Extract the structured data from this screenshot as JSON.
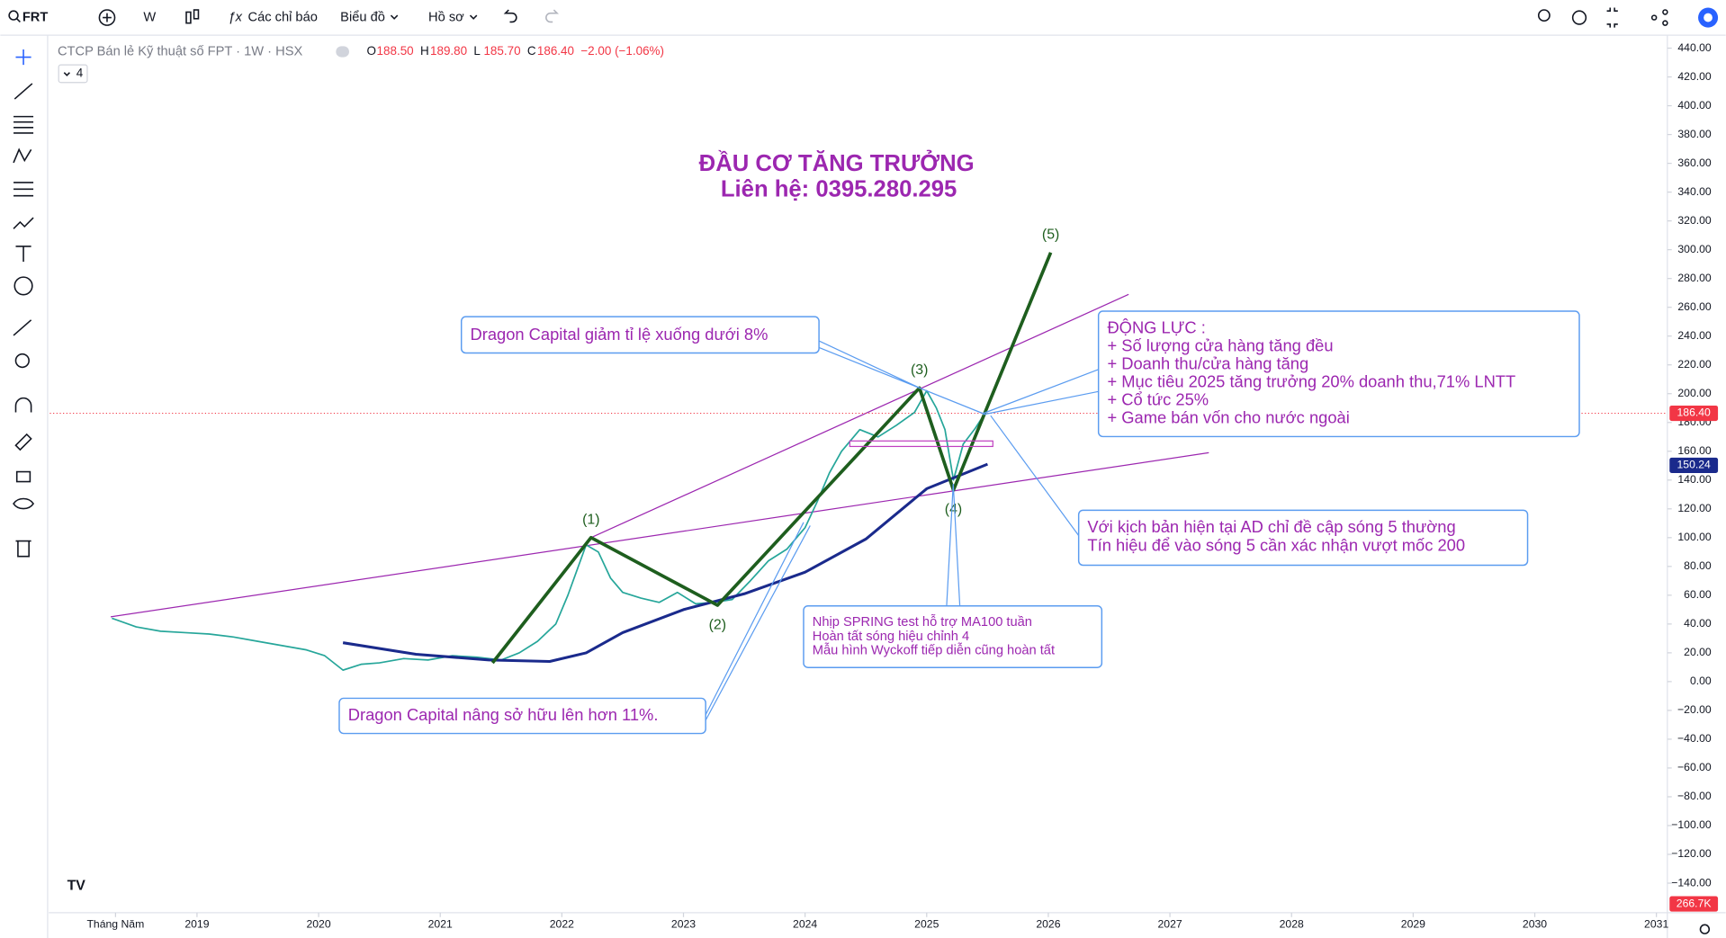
{
  "toolbar": {
    "symbol": "FRT",
    "interval": "W",
    "indicators": "Các chỉ báo",
    "chart_type": "Biểu đồ",
    "profile": "Hồ sơ"
  },
  "legend": {
    "name": "CTCP Bán lẻ Kỹ thuật số FPT · 1W · HSX",
    "ohlc": [
      {
        "label": "O",
        "value": "188.50"
      },
      {
        "label": "H",
        "value": "189.80"
      },
      {
        "label": "L",
        "value": "185.70"
      },
      {
        "label": "C",
        "value": "186.40"
      }
    ],
    "change": "−2.00 (−1.06%)",
    "collapsed_count": "4"
  },
  "headline": {
    "title": "ĐẦU CƠ TĂNG TRƯỞNG",
    "contact": "Liên hệ: 0395.280.295"
  },
  "chart": {
    "type": "line",
    "xlim": [
      2017.79,
      2031.09
    ],
    "ylim": [
      -159,
      449
    ],
    "xticks": [
      {
        "value": 2018.33,
        "label": "Tháng Năm"
      },
      2019,
      2020,
      2021,
      2022,
      2023,
      2024,
      2025,
      2026,
      2027,
      2028,
      2029,
      2030,
      2031
    ],
    "yticks": [
      {
        "value": 440,
        "label": "440.00"
      },
      {
        "value": 420,
        "label": "420.00"
      },
      {
        "value": 400,
        "label": "400.00"
      },
      {
        "value": 380,
        "label": "380.00"
      },
      {
        "value": 360,
        "label": "360.00"
      },
      {
        "value": 340,
        "label": "340.00"
      },
      {
        "value": 320,
        "label": "320.00"
      },
      {
        "value": 300,
        "label": "300.00"
      },
      {
        "value": 280,
        "label": "280.00"
      },
      {
        "value": 260,
        "label": "260.00"
      },
      {
        "value": 240,
        "label": "240.00"
      },
      {
        "value": 220,
        "label": "220.00"
      },
      {
        "value": 200,
        "label": "200.00"
      },
      {
        "value": 180,
        "label": "180.00"
      },
      {
        "value": 160,
        "label": "160.00"
      },
      {
        "value": 140,
        "label": "140.00"
      },
      {
        "value": 120,
        "label": "120.00"
      },
      {
        "value": 100,
        "label": "100.00"
      },
      {
        "value": 80,
        "label": "80.00"
      },
      {
        "value": 60,
        "label": "60.00"
      },
      {
        "value": 40,
        "label": "40.00"
      },
      {
        "value": 20,
        "label": "20.00"
      },
      {
        "value": 0,
        "label": "0.00"
      },
      {
        "value": -20,
        "label": "−20.00"
      },
      {
        "value": -40,
        "label": "−40.00"
      },
      {
        "value": -60,
        "label": "−60.00"
      },
      {
        "value": -80,
        "label": "−80.00"
      },
      {
        "value": -100,
        "label": "−100.00"
      },
      {
        "value": -120,
        "label": "−120.00"
      },
      {
        "value": -140,
        "label": "−140.00"
      }
    ],
    "price": {
      "color": "#26a69a",
      "x": [
        2018.3,
        2018.5,
        2018.7,
        2018.9,
        2019.1,
        2019.3,
        2019.5,
        2019.7,
        2019.9,
        2020.05,
        2020.2,
        2020.35,
        2020.5,
        2020.7,
        2020.9,
        2021.1,
        2021.3,
        2021.5,
        2021.65,
        2021.8,
        2021.95,
        2022.05,
        2022.2,
        2022.3,
        2022.4,
        2022.5,
        2022.65,
        2022.8,
        2022.95,
        2023.1,
        2023.25,
        2023.4,
        2023.55,
        2023.7,
        2023.85,
        2024.0,
        2024.1,
        2024.2,
        2024.3,
        2024.45,
        2024.6,
        2024.75,
        2024.9,
        2025.0,
        2025.08,
        2025.15,
        2025.22,
        2025.3,
        2025.4,
        2025.48
      ],
      "values": [
        44,
        38,
        35,
        34,
        33,
        31,
        28,
        25,
        22,
        18,
        8,
        12,
        13,
        16,
        15,
        18,
        17,
        15,
        20,
        28,
        40,
        60,
        95,
        90,
        72,
        62,
        58,
        55,
        62,
        54,
        55,
        57,
        70,
        84,
        92,
        107,
        125,
        145,
        160,
        175,
        170,
        178,
        187,
        202,
        190,
        175,
        140,
        165,
        176,
        186.4
      ]
    },
    "ma100": {
      "color": "#1a2a8c",
      "x": [
        2020.2,
        2020.8,
        2021.4,
        2021.9,
        2022.2,
        2022.5,
        2023.0,
        2023.5,
        2024.0,
        2024.5,
        2025.0,
        2025.5
      ],
      "values": [
        27,
        19,
        15,
        14,
        20,
        34,
        50,
        61,
        76,
        99,
        134,
        151
      ]
    },
    "wave": {
      "color": "#1e5e1e",
      "x": [
        2021.43,
        2022.24,
        2023.28,
        2024.94,
        2025.22,
        2025.48,
        2026.02
      ],
      "values": [
        13,
        100,
        53,
        204,
        133,
        187,
        298
      ],
      "labels": [
        null,
        "(1)",
        "(2)",
        "(3)",
        "(4)",
        null,
        "(5)"
      ]
    },
    "channel_color": "#9c27b0",
    "channel_upper": {
      "x": [
        2022.24,
        2026.66
      ],
      "values": [
        100,
        269
      ]
    },
    "channel_lower": {
      "x": [
        2018.29,
        2027.32
      ],
      "values": [
        45,
        159
      ]
    },
    "last_price": {
      "value": 186.4,
      "label": "186.40",
      "color": "#f23645"
    },
    "ma_last": {
      "value": 150.24,
      "label": "150.24"
    },
    "volume_last": "266.7K"
  },
  "notes": {
    "dragon_reduce": "Dragon Capital giảm tỉ lệ xuống dưới 8%",
    "drivers": [
      "ĐỘNG LỰC :",
      "+ Số lượng cửa hàng tăng đều",
      "+ Doanh thu/cửa hàng tăng",
      "+ Mục tiêu 2025 tăng trưởng 20% doanh thu,71% LNTT",
      "+ Cổ tức 25%",
      "+ Game bán vốn cho nước ngoài"
    ],
    "scenario": [
      "Với kịch bản hiện tại AD chỉ đề cập sóng 5 thường",
      "Tín hiệu để vào sóng 5 cần xác nhận vượt mốc 200"
    ],
    "spring": [
      "Nhịp SPRING test hỗ trợ MA100 tuần",
      "Hoàn tất sóng hiệu chỉnh 4",
      "Mẫu hình Wyckoff tiếp diễn cũng hoàn tất"
    ],
    "dragon_increase": "Dragon Capital nâng sở hữu lên hơn 11%."
  }
}
